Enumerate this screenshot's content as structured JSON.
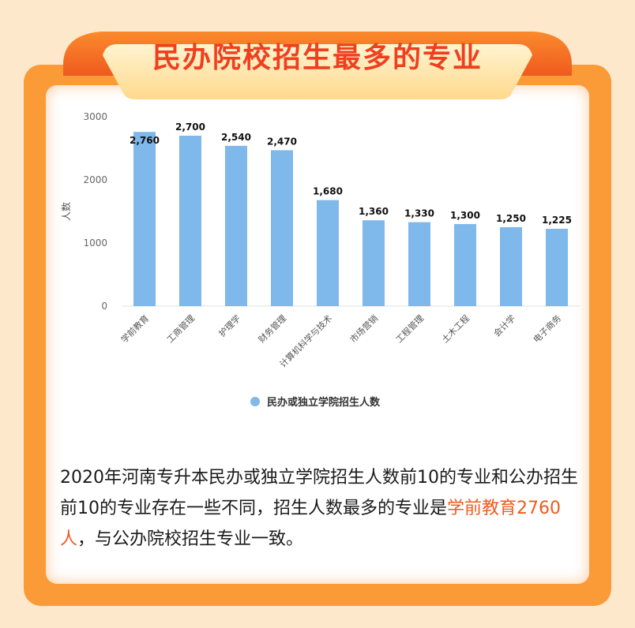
{
  "title": "民办院校招生最多的专业",
  "colors": {
    "bar": "#7fb8ea",
    "accent": "#ef3f1f",
    "highlight": "#ef5a1f",
    "frame": "#fb9b37"
  },
  "chart_data": {
    "type": "bar",
    "categories": [
      "学前教育",
      "工商管理",
      "护理学",
      "财务管理",
      "计算机科学与技术",
      "市场营销",
      "工程管理",
      "土木工程",
      "会计学",
      "电子商务"
    ],
    "series": [
      {
        "name": "民办或独立学院招生人数",
        "values": [
          2760,
          2700,
          2540,
          2470,
          1680,
          1360,
          1330,
          1300,
          1250,
          1225
        ]
      }
    ],
    "data_labels": [
      "2,760",
      "2,700",
      "2,540",
      "2,470",
      "1,680",
      "1,360",
      "1,330",
      "1,300",
      "1,250",
      "1,225"
    ],
    "ylabel": "人数",
    "ylim": [
      0,
      3000
    ],
    "yticks": [
      "0",
      "1000",
      "2000",
      "3000"
    ],
    "legend_position": "bottom",
    "grid": false
  },
  "description": {
    "text": "2020年河南专升本民办或独立学院招生人数前10的专业和公办招生前10的专业存在一些不同，招生人数最多的专业是",
    "highlight": "学前教育2760人",
    "tail": "，与公办院校招生专业一致。"
  }
}
